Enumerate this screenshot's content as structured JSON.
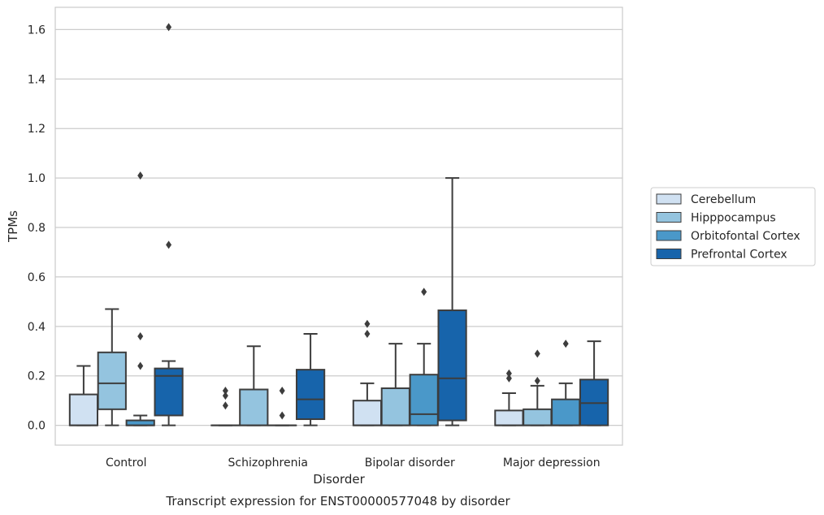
{
  "chart_data": {
    "type": "box",
    "caption": "Transcript expression for ENST00000577048 by disorder",
    "xlabel": "Disorder",
    "ylabel": "TPMs",
    "ylim": [
      -0.08,
      1.69
    ],
    "yticks": [
      "0.0",
      "0.2",
      "0.4",
      "0.6",
      "0.8",
      "1.0",
      "1.2",
      "1.4",
      "1.6"
    ],
    "grid": true,
    "legend_position": "right",
    "categories": [
      "Control",
      "Schizophrenia",
      "Bipolar disorder",
      "Major depression"
    ],
    "series": [
      {
        "name": "Cerebellum",
        "color": "#d0e1f2",
        "boxes": [
          {
            "q1": 0.0,
            "median": 0.0,
            "q3": 0.125,
            "whislo": 0.0,
            "whishi": 0.24,
            "fliers": []
          },
          {
            "q1": 0.0,
            "median": 0.0,
            "q3": 0.0,
            "whislo": 0.0,
            "whishi": 0.0,
            "fliers": [
              0.08,
              0.12,
              0.14
            ]
          },
          {
            "q1": 0.0,
            "median": 0.0,
            "q3": 0.1,
            "whislo": 0.0,
            "whishi": 0.17,
            "fliers": [
              0.37,
              0.41
            ]
          },
          {
            "q1": 0.0,
            "median": 0.0,
            "q3": 0.06,
            "whislo": 0.0,
            "whishi": 0.13,
            "fliers": [
              0.19,
              0.21
            ]
          }
        ]
      },
      {
        "name": "Hipppocampus",
        "color": "#94c4df",
        "boxes": [
          {
            "q1": 0.065,
            "median": 0.17,
            "q3": 0.295,
            "whislo": 0.0,
            "whishi": 0.47,
            "fliers": []
          },
          {
            "q1": 0.0,
            "median": 0.0,
            "q3": 0.145,
            "whislo": 0.0,
            "whishi": 0.32,
            "fliers": []
          },
          {
            "q1": 0.0,
            "median": 0.0,
            "q3": 0.15,
            "whislo": 0.0,
            "whishi": 0.33,
            "fliers": []
          },
          {
            "q1": 0.0,
            "median": 0.0,
            "q3": 0.065,
            "whislo": 0.0,
            "whishi": 0.16,
            "fliers": [
              0.18,
              0.29
            ]
          }
        ]
      },
      {
        "name": "Orbitofontal Cortex",
        "color": "#4a98c9",
        "boxes": [
          {
            "q1": 0.0,
            "median": 0.0,
            "q3": 0.02,
            "whislo": 0.0,
            "whishi": 0.04,
            "fliers": [
              0.24,
              0.36,
              1.01
            ]
          },
          {
            "q1": 0.0,
            "median": 0.0,
            "q3": 0.0,
            "whislo": 0.0,
            "whishi": 0.0,
            "fliers": [
              0.04,
              0.14
            ]
          },
          {
            "q1": 0.0,
            "median": 0.045,
            "q3": 0.205,
            "whislo": 0.0,
            "whishi": 0.33,
            "fliers": [
              0.54
            ]
          },
          {
            "q1": 0.0,
            "median": 0.0,
            "q3": 0.105,
            "whislo": 0.0,
            "whishi": 0.17,
            "fliers": [
              0.33
            ]
          }
        ]
      },
      {
        "name": "Prefrontal Cortex",
        "color": "#1764ab",
        "boxes": [
          {
            "q1": 0.04,
            "median": 0.2,
            "q3": 0.23,
            "whislo": 0.0,
            "whishi": 0.26,
            "fliers": [
              0.73,
              1.61
            ]
          },
          {
            "q1": 0.025,
            "median": 0.105,
            "q3": 0.225,
            "whislo": 0.0,
            "whishi": 0.37,
            "fliers": []
          },
          {
            "q1": 0.02,
            "median": 0.19,
            "q3": 0.465,
            "whislo": 0.0,
            "whishi": 1.0,
            "fliers": []
          },
          {
            "q1": 0.0,
            "median": 0.09,
            "q3": 0.185,
            "whislo": 0.0,
            "whishi": 0.34,
            "fliers": []
          }
        ]
      }
    ]
  }
}
